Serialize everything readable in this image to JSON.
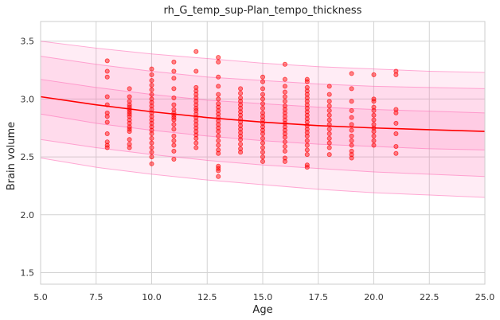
{
  "chart_data": {
    "type": "scatter",
    "title": "rh_G_temp_sup-Plan_tempo_thickness",
    "xlabel": "Age",
    "ylabel": "Brain volume",
    "xlim": [
      5.0,
      25.0
    ],
    "ylim": [
      1.4,
      3.67
    ],
    "x_ticks": [
      5.0,
      7.5,
      10.0,
      12.5,
      15.0,
      17.5,
      20.0,
      22.5,
      25.0
    ],
    "x_tick_labels": [
      "5.0",
      "7.5",
      "10.0",
      "12.5",
      "15.0",
      "17.5",
      "20.0",
      "22.5",
      "25.0"
    ],
    "y_ticks": [
      1.5,
      2.0,
      2.5,
      3.0,
      3.5
    ],
    "y_tick_labels": [
      "1.5",
      "2.0",
      "2.5",
      "3.0",
      "3.5"
    ],
    "grid": true,
    "colors": {
      "points": "#ff0000",
      "mean_line": "#ff0000",
      "band_fill": "#ff69b4",
      "band_edge": "#ff69b4",
      "grid": "#d3d3d3",
      "frame": "#cccccc"
    },
    "fit_curve": {
      "x": [
        5,
        7.5,
        10,
        12.5,
        15,
        17.5,
        20,
        22.5,
        25
      ],
      "mean": [
        3.02,
        2.95,
        2.89,
        2.84,
        2.8,
        2.77,
        2.75,
        2.735,
        2.72
      ],
      "band_inner": {
        "lower": [
          2.87,
          2.79,
          2.73,
          2.68,
          2.64,
          2.61,
          2.59,
          2.57,
          2.56
        ],
        "upper": [
          3.17,
          3.1,
          3.04,
          2.99,
          2.96,
          2.93,
          2.91,
          2.895,
          2.88
        ]
      },
      "band_middle": {
        "lower": [
          2.65,
          2.58,
          2.52,
          2.47,
          2.43,
          2.4,
          2.37,
          2.35,
          2.33
        ],
        "upper": [
          3.37,
          3.3,
          3.24,
          3.19,
          3.16,
          3.13,
          3.11,
          3.1,
          3.09
        ]
      },
      "band_outer": {
        "lower": [
          2.49,
          2.41,
          2.35,
          2.3,
          2.26,
          2.22,
          2.19,
          2.17,
          2.15
        ],
        "upper": [
          3.5,
          3.44,
          3.39,
          3.35,
          3.31,
          3.28,
          3.26,
          3.24,
          3.23
        ]
      }
    },
    "points": [
      [
        8,
        3.33
      ],
      [
        8,
        3.24
      ],
      [
        8,
        3.19
      ],
      [
        8,
        3.02
      ],
      [
        8,
        2.95
      ],
      [
        8,
        2.88
      ],
      [
        8,
        2.85
      ],
      [
        8,
        2.8
      ],
      [
        8,
        2.7
      ],
      [
        8,
        2.63
      ],
      [
        8,
        2.6
      ],
      [
        8,
        2.58
      ],
      [
        9,
        3.09
      ],
      [
        9,
        3.02
      ],
      [
        9,
        2.98
      ],
      [
        9,
        2.95
      ],
      [
        9,
        2.93
      ],
      [
        9,
        2.91
      ],
      [
        9,
        2.89
      ],
      [
        9,
        2.87
      ],
      [
        9,
        2.85
      ],
      [
        9,
        2.82
      ],
      [
        9,
        2.79
      ],
      [
        9,
        2.76
      ],
      [
        9,
        2.74
      ],
      [
        9,
        2.72
      ],
      [
        9,
        2.65
      ],
      [
        9,
        2.61
      ],
      [
        9,
        2.58
      ],
      [
        10,
        3.26
      ],
      [
        10,
        3.21
      ],
      [
        10,
        3.16
      ],
      [
        10,
        3.12
      ],
      [
        10,
        3.08
      ],
      [
        10,
        3.04
      ],
      [
        10,
        3.0
      ],
      [
        10,
        2.97
      ],
      [
        10,
        2.94
      ],
      [
        10,
        2.91
      ],
      [
        10,
        2.88
      ],
      [
        10,
        2.85
      ],
      [
        10,
        2.82
      ],
      [
        10,
        2.79
      ],
      [
        10,
        2.76
      ],
      [
        10,
        2.73
      ],
      [
        10,
        2.7
      ],
      [
        10,
        2.66
      ],
      [
        10,
        2.62
      ],
      [
        10,
        2.58
      ],
      [
        10,
        2.54
      ],
      [
        10,
        2.5
      ],
      [
        10,
        2.44
      ],
      [
        11,
        3.32
      ],
      [
        11,
        3.24
      ],
      [
        11,
        3.18
      ],
      [
        11,
        3.09
      ],
      [
        11,
        3.01
      ],
      [
        11,
        2.95
      ],
      [
        11,
        2.91
      ],
      [
        11,
        2.88
      ],
      [
        11,
        2.86
      ],
      [
        11,
        2.84
      ],
      [
        11,
        2.82
      ],
      [
        11,
        2.78
      ],
      [
        11,
        2.74
      ],
      [
        11,
        2.68
      ],
      [
        11,
        2.64
      ],
      [
        11,
        2.6
      ],
      [
        11,
        2.55
      ],
      [
        11,
        2.48
      ],
      [
        12,
        3.41
      ],
      [
        12,
        3.24
      ],
      [
        12,
        3.1
      ],
      [
        12,
        3.07
      ],
      [
        12,
        3.04
      ],
      [
        12,
        3.01
      ],
      [
        12,
        2.98
      ],
      [
        12,
        2.95
      ],
      [
        12,
        2.92
      ],
      [
        12,
        2.9
      ],
      [
        12,
        2.87
      ],
      [
        12,
        2.84
      ],
      [
        12,
        2.81
      ],
      [
        12,
        2.78
      ],
      [
        12,
        2.75
      ],
      [
        12,
        2.72
      ],
      [
        12,
        2.69
      ],
      [
        12,
        2.66
      ],
      [
        12,
        2.62
      ],
      [
        12,
        2.58
      ],
      [
        13,
        3.36
      ],
      [
        13,
        3.32
      ],
      [
        13,
        3.19
      ],
      [
        13,
        3.11
      ],
      [
        13,
        3.04
      ],
      [
        13,
        3.0
      ],
      [
        13,
        2.96
      ],
      [
        13,
        2.93
      ],
      [
        13,
        2.9
      ],
      [
        13,
        2.87
      ],
      [
        13,
        2.84
      ],
      [
        13,
        2.81
      ],
      [
        13,
        2.78
      ],
      [
        13,
        2.75
      ],
      [
        13,
        2.72
      ],
      [
        13,
        2.68
      ],
      [
        13,
        2.64
      ],
      [
        13,
        2.6
      ],
      [
        13,
        2.56
      ],
      [
        13,
        2.53
      ],
      [
        13,
        2.42
      ],
      [
        13,
        2.4
      ],
      [
        13,
        2.38
      ],
      [
        13,
        2.33
      ],
      [
        14,
        3.09
      ],
      [
        14,
        3.05
      ],
      [
        14,
        3.01
      ],
      [
        14,
        2.98
      ],
      [
        14,
        2.95
      ],
      [
        14,
        2.92
      ],
      [
        14,
        2.89
      ],
      [
        14,
        2.86
      ],
      [
        14,
        2.83
      ],
      [
        14,
        2.8
      ],
      [
        14,
        2.77
      ],
      [
        14,
        2.74
      ],
      [
        14,
        2.71
      ],
      [
        14,
        2.68
      ],
      [
        14,
        2.65
      ],
      [
        14,
        2.61
      ],
      [
        14,
        2.57
      ],
      [
        14,
        2.54
      ],
      [
        15,
        3.19
      ],
      [
        15,
        3.15
      ],
      [
        15,
        3.09
      ],
      [
        15,
        3.04
      ],
      [
        15,
        3.0
      ],
      [
        15,
        2.96
      ],
      [
        15,
        2.92
      ],
      [
        15,
        2.88
      ],
      [
        15,
        2.85
      ],
      [
        15,
        2.82
      ],
      [
        15,
        2.79
      ],
      [
        15,
        2.76
      ],
      [
        15,
        2.73
      ],
      [
        15,
        2.7
      ],
      [
        15,
        2.66
      ],
      [
        15,
        2.62
      ],
      [
        15,
        2.58
      ],
      [
        15,
        2.54
      ],
      [
        15,
        2.5
      ],
      [
        15,
        2.46
      ],
      [
        16,
        3.3
      ],
      [
        16,
        3.17
      ],
      [
        16,
        3.11
      ],
      [
        16,
        3.06
      ],
      [
        16,
        3.02
      ],
      [
        16,
        2.98
      ],
      [
        16,
        2.94
      ],
      [
        16,
        2.91
      ],
      [
        16,
        2.88
      ],
      [
        16,
        2.85
      ],
      [
        16,
        2.82
      ],
      [
        16,
        2.79
      ],
      [
        16,
        2.76
      ],
      [
        16,
        2.73
      ],
      [
        16,
        2.7
      ],
      [
        16,
        2.67
      ],
      [
        16,
        2.63
      ],
      [
        16,
        2.59
      ],
      [
        16,
        2.55
      ],
      [
        16,
        2.49
      ],
      [
        16,
        2.46
      ],
      [
        17,
        3.17
      ],
      [
        17,
        3.15
      ],
      [
        17,
        3.1
      ],
      [
        17,
        3.07
      ],
      [
        17,
        3.04
      ],
      [
        17,
        3.01
      ],
      [
        17,
        2.98
      ],
      [
        17,
        2.95
      ],
      [
        17,
        2.92
      ],
      [
        17,
        2.89
      ],
      [
        17,
        2.86
      ],
      [
        17,
        2.83
      ],
      [
        17,
        2.8
      ],
      [
        17,
        2.77
      ],
      [
        17,
        2.74
      ],
      [
        17,
        2.71
      ],
      [
        17,
        2.68
      ],
      [
        17,
        2.64
      ],
      [
        17,
        2.6
      ],
      [
        17,
        2.56
      ],
      [
        17,
        2.52
      ],
      [
        17,
        2.43
      ],
      [
        17,
        2.41
      ],
      [
        18,
        3.11
      ],
      [
        18,
        3.04
      ],
      [
        18,
        2.98
      ],
      [
        18,
        2.94
      ],
      [
        18,
        2.9
      ],
      [
        18,
        2.86
      ],
      [
        18,
        2.82
      ],
      [
        18,
        2.78
      ],
      [
        18,
        2.74
      ],
      [
        18,
        2.7
      ],
      [
        18,
        2.66
      ],
      [
        18,
        2.62
      ],
      [
        18,
        2.58
      ],
      [
        18,
        2.52
      ],
      [
        19,
        3.22
      ],
      [
        19,
        3.09
      ],
      [
        19,
        2.98
      ],
      [
        19,
        2.9
      ],
      [
        19,
        2.84
      ],
      [
        19,
        2.78
      ],
      [
        19,
        2.73
      ],
      [
        19,
        2.68
      ],
      [
        19,
        2.64
      ],
      [
        19,
        2.6
      ],
      [
        19,
        2.55
      ],
      [
        19,
        2.52
      ],
      [
        19,
        2.49
      ],
      [
        20,
        3.21
      ],
      [
        20,
        3.0
      ],
      [
        20,
        2.98
      ],
      [
        20,
        2.93
      ],
      [
        20,
        2.9
      ],
      [
        20,
        2.86
      ],
      [
        20,
        2.82
      ],
      [
        20,
        2.78
      ],
      [
        20,
        2.75
      ],
      [
        20,
        2.72
      ],
      [
        20,
        2.68
      ],
      [
        20,
        2.64
      ],
      [
        20,
        2.6
      ],
      [
        21,
        3.24
      ],
      [
        21,
        3.21
      ],
      [
        21,
        2.91
      ],
      [
        21,
        2.88
      ],
      [
        21,
        2.79
      ],
      [
        21,
        2.7
      ],
      [
        21,
        2.59
      ],
      [
        21,
        2.53
      ]
    ]
  }
}
